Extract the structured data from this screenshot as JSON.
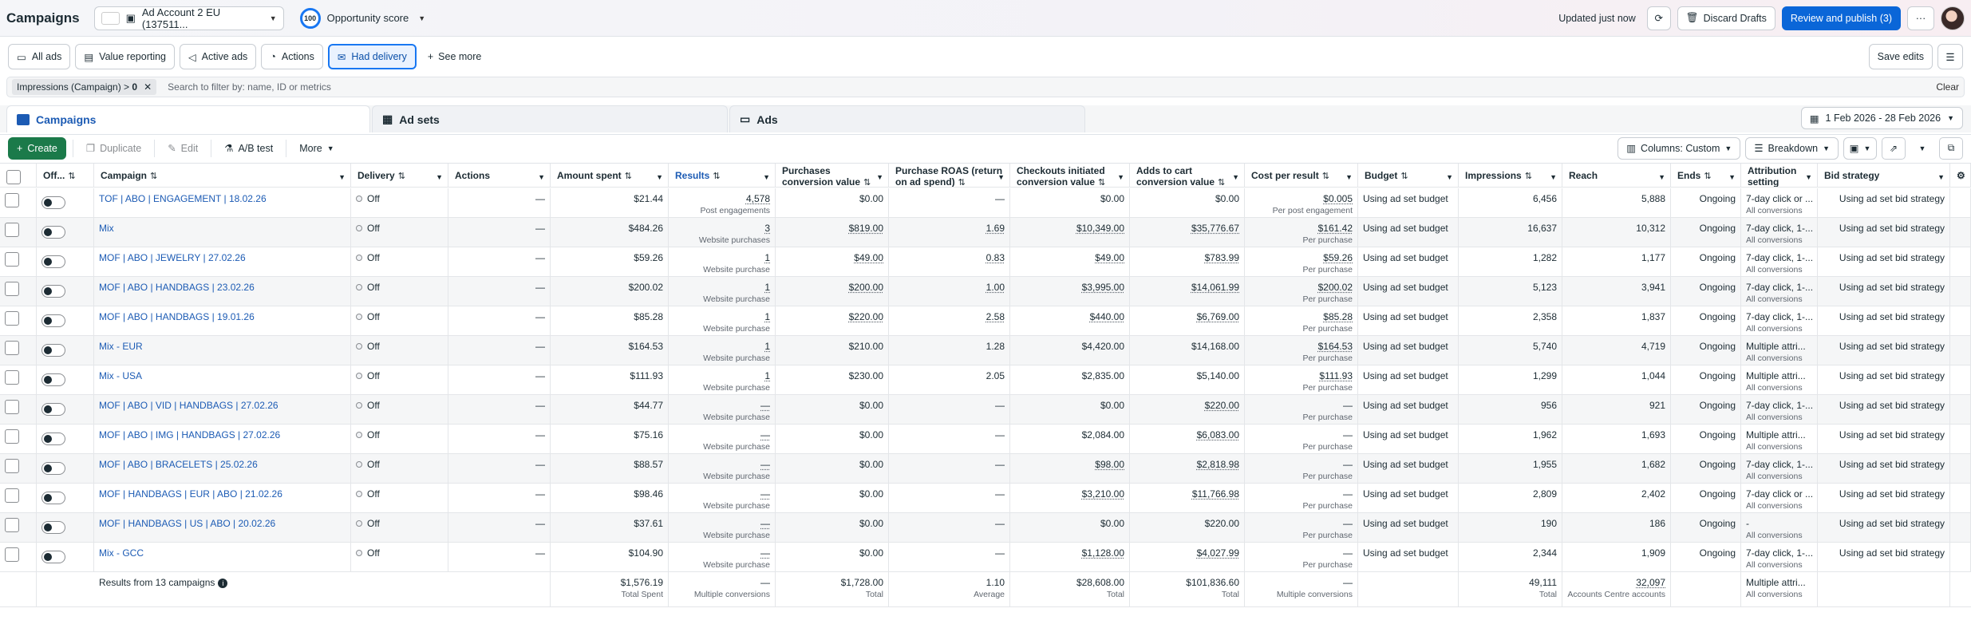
{
  "top": {
    "title": "Campaigns",
    "account": "Ad Account 2 EU (137511...",
    "account_logo_text": "logo",
    "opportunity_score": "100",
    "opportunity_label": "Opportunity score",
    "updated": "Updated just now",
    "discard": "Discard Drafts",
    "review": "Review and publish (3)",
    "more": "···"
  },
  "filters": {
    "chips": [
      "All ads",
      "Value reporting",
      "Active ads",
      "Actions",
      "Had delivery"
    ],
    "see_more": "See more",
    "save_edits": "Save edits"
  },
  "search": {
    "pill_label": "Impressions (Campaign) > ",
    "pill_value": "0",
    "placeholder": "Search to filter by: name, ID or metrics",
    "clear": "Clear"
  },
  "tabs": {
    "campaigns": "Campaigns",
    "adsets": "Ad sets",
    "ads": "Ads",
    "date_range": "1 Feb 2026 - 28 Feb 2026"
  },
  "toolbar": {
    "create": "Create",
    "duplicate": "Duplicate",
    "edit": "Edit",
    "ab_test": "A/B test",
    "more": "More",
    "columns": "Columns: Custom",
    "breakdown": "Breakdown"
  },
  "columns": {
    "offon": "Off...",
    "campaign": "Campaign",
    "delivery": "Delivery",
    "actions": "Actions",
    "amount": "Amount spent",
    "results": "Results",
    "purchases_value": "Purchases conversion value",
    "roas": "Purchase ROAS (return on ad spend)",
    "checkouts": "Checkouts initiated conversion value",
    "adds": "Adds to cart conversion value",
    "cpr": "Cost per result",
    "budget": "Budget",
    "impressions": "Impressions",
    "reach": "Reach",
    "ends": "Ends",
    "attribution": "Attribution setting",
    "bid": "Bid strategy"
  },
  "rows": [
    {
      "name": "TOF | ABO | ENGAGEMENT | 18.02.26",
      "delivery": "Off",
      "actions": "—",
      "amount": "$21.44",
      "results": "4,578",
      "results_sub": "Post engagements",
      "pv": "$0.00",
      "roas": "—",
      "checkouts": "$0.00",
      "adds": "$0.00",
      "cpr": "$0.005",
      "cpr_sub": "Per post engagement",
      "budget": "Using ad set budget",
      "impr": "6,456",
      "reach": "5,888",
      "ends": "Ongoing",
      "attr": "7-day click or ...",
      "attr_sub": "All conversions",
      "bid": "Using ad set bid strategy"
    },
    {
      "name": "Mix",
      "delivery": "Off",
      "actions": "—",
      "amount": "$484.26",
      "results": "3",
      "results_sub": "Website purchases",
      "pv": "$819.00",
      "roas": "1.69",
      "checkouts": "$10,349.00",
      "adds": "$35,776.67",
      "cpr": "$161.42",
      "cpr_sub": "Per purchase",
      "budget": "Using ad set budget",
      "impr": "16,637",
      "reach": "10,312",
      "ends": "Ongoing",
      "attr": "7-day click, 1-...",
      "attr_sub": "All conversions",
      "bid": "Using ad set bid strategy"
    },
    {
      "name": "MOF | ABO | JEWELRY | 27.02.26",
      "delivery": "Off",
      "actions": "—",
      "amount": "$59.26",
      "results": "1",
      "results_sub": "Website purchase",
      "pv": "$49.00",
      "roas": "0.83",
      "checkouts": "$49.00",
      "adds": "$783.99",
      "cpr": "$59.26",
      "cpr_sub": "Per purchase",
      "budget": "Using ad set budget",
      "impr": "1,282",
      "reach": "1,177",
      "ends": "Ongoing",
      "attr": "7-day click, 1-...",
      "attr_sub": "All conversions",
      "bid": "Using ad set bid strategy"
    },
    {
      "name": "MOF | ABO | HANDBAGS | 23.02.26",
      "delivery": "Off",
      "actions": "—",
      "amount": "$200.02",
      "results": "1",
      "results_sub": "Website purchase",
      "pv": "$200.00",
      "roas": "1.00",
      "checkouts": "$3,995.00",
      "adds": "$14,061.99",
      "cpr": "$200.02",
      "cpr_sub": "Per purchase",
      "budget": "Using ad set budget",
      "impr": "5,123",
      "reach": "3,941",
      "ends": "Ongoing",
      "attr": "7-day click, 1-...",
      "attr_sub": "All conversions",
      "bid": "Using ad set bid strategy"
    },
    {
      "name": "MOF | ABO | HANDBAGS | 19.01.26",
      "delivery": "Off",
      "actions": "—",
      "amount": "$85.28",
      "results": "1",
      "results_sub": "Website purchase",
      "pv": "$220.00",
      "roas": "2.58",
      "checkouts": "$440.00",
      "adds": "$6,769.00",
      "cpr": "$85.28",
      "cpr_sub": "Per purchase",
      "budget": "Using ad set budget",
      "impr": "2,358",
      "reach": "1,837",
      "ends": "Ongoing",
      "attr": "7-day click, 1-...",
      "attr_sub": "All conversions",
      "bid": "Using ad set bid strategy"
    },
    {
      "name": "Mix - EUR",
      "delivery": "Off",
      "actions": "—",
      "amount": "$164.53",
      "results": "1",
      "results_sub": "Website purchase",
      "pv": "$210.00",
      "roas": "1.28",
      "checkouts": "$4,420.00",
      "adds": "$14,168.00",
      "cpr": "$164.53",
      "cpr_sub": "Per purchase",
      "budget": "Using ad set budget",
      "impr": "5,740",
      "reach": "4,719",
      "ends": "Ongoing",
      "attr": "Multiple attri...",
      "attr_sub": "All conversions",
      "bid": "Using ad set bid strategy"
    },
    {
      "name": "Mix - USA",
      "delivery": "Off",
      "actions": "—",
      "amount": "$111.93",
      "results": "1",
      "results_sub": "Website purchase",
      "pv": "$230.00",
      "roas": "2.05",
      "checkouts": "$2,835.00",
      "adds": "$5,140.00",
      "cpr": "$111.93",
      "cpr_sub": "Per purchase",
      "budget": "Using ad set budget",
      "impr": "1,299",
      "reach": "1,044",
      "ends": "Ongoing",
      "attr": "Multiple attri...",
      "attr_sub": "All conversions",
      "bid": "Using ad set bid strategy"
    },
    {
      "name": "MOF | ABO | VID | HANDBAGS | 27.02.26",
      "delivery": "Off",
      "actions": "—",
      "amount": "$44.77",
      "results": "—",
      "results_sub": "Website purchase",
      "pv": "$0.00",
      "roas": "—",
      "checkouts": "$0.00",
      "adds": "$220.00",
      "cpr": "—",
      "cpr_sub": "Per purchase",
      "budget": "Using ad set budget",
      "impr": "956",
      "reach": "921",
      "ends": "Ongoing",
      "attr": "7-day click, 1-...",
      "attr_sub": "All conversions",
      "bid": "Using ad set bid strategy"
    },
    {
      "name": "MOF | ABO | IMG | HANDBAGS | 27.02.26",
      "delivery": "Off",
      "actions": "—",
      "amount": "$75.16",
      "results": "—",
      "results_sub": "Website purchase",
      "pv": "$0.00",
      "roas": "—",
      "checkouts": "$2,084.00",
      "adds": "$6,083.00",
      "cpr": "—",
      "cpr_sub": "Per purchase",
      "budget": "Using ad set budget",
      "impr": "1,962",
      "reach": "1,693",
      "ends": "Ongoing",
      "attr": "Multiple attri...",
      "attr_sub": "All conversions",
      "bid": "Using ad set bid strategy"
    },
    {
      "name": "MOF | ABO | BRACELETS | 25.02.26",
      "delivery": "Off",
      "actions": "—",
      "amount": "$88.57",
      "results": "—",
      "results_sub": "Website purchase",
      "pv": "$0.00",
      "roas": "—",
      "checkouts": "$98.00",
      "adds": "$2,818.98",
      "cpr": "—",
      "cpr_sub": "Per purchase",
      "budget": "Using ad set budget",
      "impr": "1,955",
      "reach": "1,682",
      "ends": "Ongoing",
      "attr": "7-day click, 1-...",
      "attr_sub": "All conversions",
      "bid": "Using ad set bid strategy"
    },
    {
      "name": "MOF | HANDBAGS | EUR | ABO | 21.02.26",
      "delivery": "Off",
      "actions": "—",
      "amount": "$98.46",
      "results": "—",
      "results_sub": "Website purchase",
      "pv": "$0.00",
      "roas": "—",
      "checkouts": "$3,210.00",
      "adds": "$11,766.98",
      "cpr": "—",
      "cpr_sub": "Per purchase",
      "budget": "Using ad set budget",
      "impr": "2,809",
      "reach": "2,402",
      "ends": "Ongoing",
      "attr": "7-day click or ...",
      "attr_sub": "All conversions",
      "bid": "Using ad set bid strategy"
    },
    {
      "name": "MOF | HANDBAGS | US | ABO | 20.02.26",
      "delivery": "Off",
      "actions": "—",
      "amount": "$37.61",
      "results": "—",
      "results_sub": "Website purchase",
      "pv": "$0.00",
      "roas": "—",
      "checkouts": "$0.00",
      "adds": "$220.00",
      "cpr": "—",
      "cpr_sub": "Per purchase",
      "budget": "Using ad set budget",
      "impr": "190",
      "reach": "186",
      "ends": "Ongoing",
      "attr": "-",
      "attr_sub": "All conversions",
      "bid": "Using ad set bid strategy"
    },
    {
      "name": "Mix - GCC",
      "delivery": "Off",
      "actions": "—",
      "amount": "$104.90",
      "results": "—",
      "results_sub": "Website purchase",
      "pv": "$0.00",
      "roas": "—",
      "checkouts": "$1,128.00",
      "adds": "$4,027.99",
      "cpr": "—",
      "cpr_sub": "Per purchase",
      "budget": "Using ad set budget",
      "impr": "2,344",
      "reach": "1,909",
      "ends": "Ongoing",
      "attr": "7-day click, 1-...",
      "attr_sub": "All conversions",
      "bid": "Using ad set bid strategy"
    }
  ],
  "totals": {
    "label": "Results from 13 campaigns",
    "amount": "$1,576.19",
    "amount_sub": "Total Spent",
    "results": "—",
    "results_sub": "Multiple conversions",
    "pv": "$1,728.00",
    "pv_sub": "Total",
    "roas": "1.10",
    "roas_sub": "Average",
    "checkouts": "$28,608.00",
    "checkouts_sub": "Total",
    "adds": "$101,836.60",
    "adds_sub": "Total",
    "cpr": "—",
    "cpr_sub": "Multiple conversions",
    "impr": "49,111",
    "impr_sub": "Total",
    "reach": "32,097",
    "reach_sub": "Accounts Centre accounts",
    "attr": "Multiple attri...",
    "attr_sub": "All conversions"
  },
  "colors": {
    "link": "#1c5bb4",
    "primary": "#0a66d8",
    "create": "#1b7a4a"
  }
}
